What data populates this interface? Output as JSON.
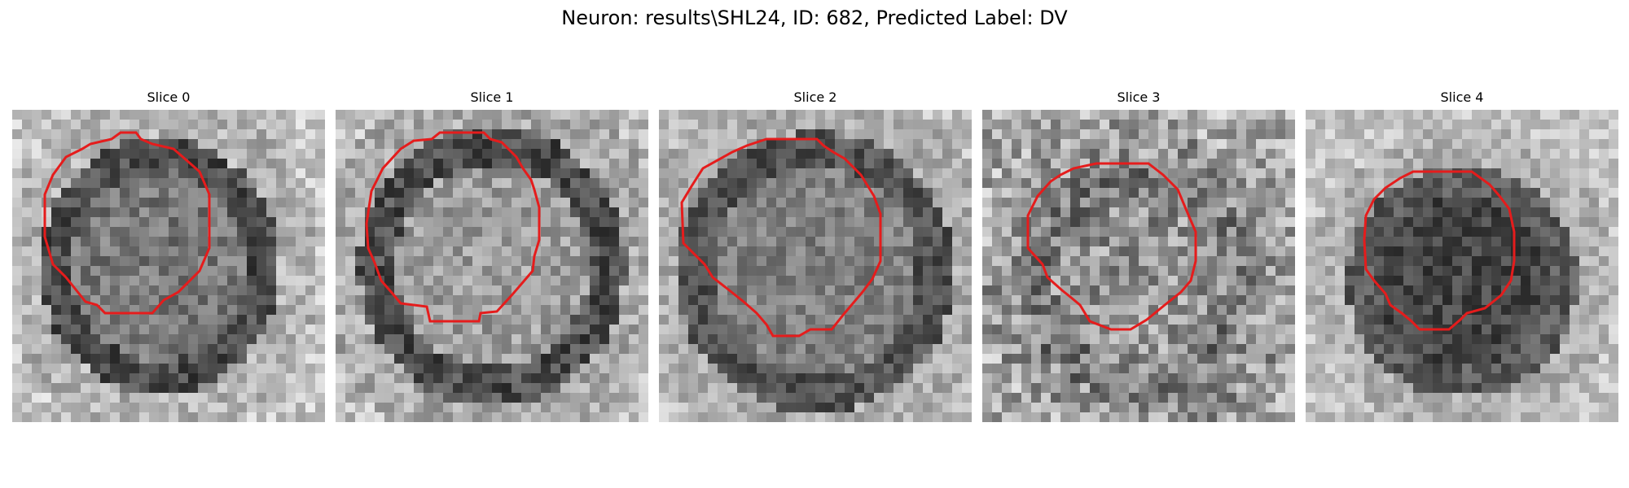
{
  "figure": {
    "title": "Neuron: results\\SHL24, ID: 682, Predicted Label: DV"
  },
  "panels": [
    {
      "title": "Slice 0",
      "tone": "dark",
      "image_name": "slice-0-image",
      "contour_name": "slice-0-contour"
    },
    {
      "title": "Slice 1",
      "tone": "light",
      "image_name": "slice-1-image",
      "contour_name": "slice-1-contour"
    },
    {
      "title": "Slice 2",
      "tone": "medium",
      "image_name": "slice-2-image",
      "contour_name": "slice-2-contour"
    },
    {
      "title": "Slice 3",
      "tone": "noisy",
      "image_name": "slice-3-image",
      "contour_name": "slice-3-contour"
    },
    {
      "title": "Slice 4",
      "tone": "darkest",
      "image_name": "slice-4-image",
      "contour_name": "slice-4-contour"
    }
  ],
  "colors": {
    "contour": "#e51c1c",
    "background": "#ffffff",
    "text": "#000000"
  },
  "colormap": "grayscale"
}
